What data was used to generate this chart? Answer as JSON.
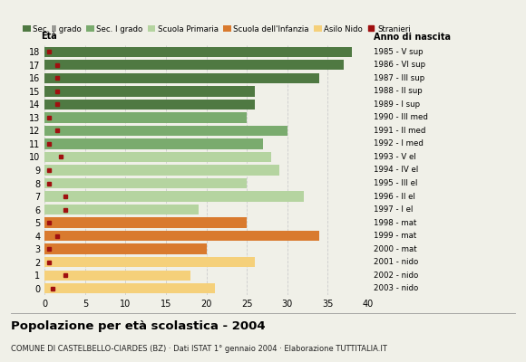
{
  "ages": [
    18,
    17,
    16,
    15,
    14,
    13,
    12,
    11,
    10,
    9,
    8,
    7,
    6,
    5,
    4,
    3,
    2,
    1,
    0
  ],
  "values": [
    38,
    37,
    34,
    26,
    26,
    25,
    30,
    27,
    28,
    29,
    25,
    32,
    19,
    25,
    34,
    20,
    26,
    18,
    21
  ],
  "stranieri": [
    0.5,
    1.5,
    1.5,
    1.5,
    1.5,
    0.5,
    1.5,
    0.5,
    2,
    0.5,
    0.5,
    2.5,
    2.5,
    0.5,
    1.5,
    0.5,
    0.5,
    2.5,
    1
  ],
  "bar_colors": [
    "#4f7942",
    "#4f7942",
    "#4f7942",
    "#4f7942",
    "#4f7942",
    "#7aab6e",
    "#7aab6e",
    "#7aab6e",
    "#b5d4a0",
    "#b5d4a0",
    "#b5d4a0",
    "#b5d4a0",
    "#b5d4a0",
    "#d97a2e",
    "#d97a2e",
    "#d97a2e",
    "#f5d07a",
    "#f5d07a",
    "#f5d07a"
  ],
  "anno_di_nascita": [
    "1985 - V sup",
    "1986 - VI sup",
    "1987 - III sup",
    "1988 - II sup",
    "1989 - I sup",
    "1990 - III med",
    "1991 - II med",
    "1992 - I med",
    "1993 - V el",
    "1994 - IV el",
    "1995 - III el",
    "1996 - II el",
    "1997 - I el",
    "1998 - mat",
    "1999 - mat",
    "2000 - mat",
    "2001 - nido",
    "2002 - nido",
    "2003 - nido"
  ],
  "legend_labels": [
    "Sec. II grado",
    "Sec. I grado",
    "Scuola Primaria",
    "Scuola dell'Infanzia",
    "Asilo Nido",
    "Stranieri"
  ],
  "legend_colors": [
    "#4f7942",
    "#7aab6e",
    "#b5d4a0",
    "#d97a2e",
    "#f5d07a",
    "#a01010"
  ],
  "straniero_color": "#a01010",
  "title": "Popolazione per età scolastica - 2004",
  "subtitle": "COMUNE DI CASTELBELLO-CIARDES (BZ) · Dati ISTAT 1° gennaio 2004 · Elaborazione TUTTITALIA.IT",
  "xlabel_eta": "Età",
  "xlabel_anno": "Anno di nascita",
  "xlim": [
    0,
    40
  ],
  "background_color": "#f0f0e8",
  "grid_color": "#cccccc"
}
